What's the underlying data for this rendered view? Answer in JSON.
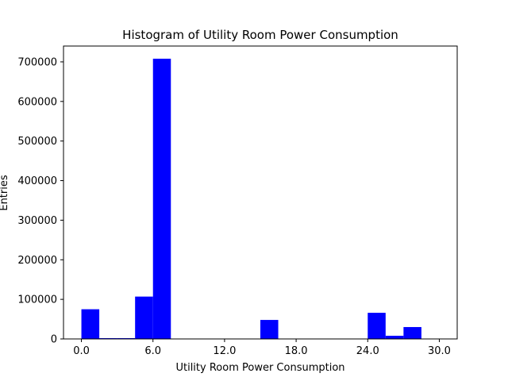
{
  "chart_data": {
    "type": "bar",
    "title": "Histogram of Utility Room Power Consumption",
    "xlabel": "Utility Room Power Consumption",
    "ylabel": "Entries",
    "xlim": [
      -1.5,
      31.5
    ],
    "ylim": [
      0,
      740000
    ],
    "grid": false,
    "bar_color": "#0000ff",
    "x_ticks": [
      0,
      6,
      12,
      18,
      24,
      30
    ],
    "x_tick_labels": [
      "0.0",
      "6.0",
      "12.0",
      "18.0",
      "24.0",
      "30.0"
    ],
    "y_ticks": [
      0,
      100000,
      200000,
      300000,
      400000,
      500000,
      600000,
      700000
    ],
    "y_tick_labels": [
      "0",
      "100000",
      "200000",
      "300000",
      "400000",
      "500000",
      "600000",
      "700000"
    ],
    "bin_width": 1.5,
    "bins": [
      {
        "x0": 0.0,
        "x1": 1.5,
        "value": 75000
      },
      {
        "x0": 1.5,
        "x1": 3.0,
        "value": 2000
      },
      {
        "x0": 3.0,
        "x1": 4.5,
        "value": 2000
      },
      {
        "x0": 4.5,
        "x1": 6.0,
        "value": 107000
      },
      {
        "x0": 6.0,
        "x1": 7.5,
        "value": 708000
      },
      {
        "x0": 7.5,
        "x1": 9.0,
        "value": 0
      },
      {
        "x0": 9.0,
        "x1": 10.5,
        "value": 0
      },
      {
        "x0": 10.5,
        "x1": 12.0,
        "value": 0
      },
      {
        "x0": 12.0,
        "x1": 13.5,
        "value": 0
      },
      {
        "x0": 13.5,
        "x1": 15.0,
        "value": 0
      },
      {
        "x0": 15.0,
        "x1": 16.5,
        "value": 48000
      },
      {
        "x0": 16.5,
        "x1": 18.0,
        "value": 0
      },
      {
        "x0": 18.0,
        "x1": 19.5,
        "value": 0
      },
      {
        "x0": 19.5,
        "x1": 21.0,
        "value": 0
      },
      {
        "x0": 21.0,
        "x1": 22.5,
        "value": 0
      },
      {
        "x0": 22.5,
        "x1": 24.0,
        "value": 0
      },
      {
        "x0": 24.0,
        "x1": 25.5,
        "value": 66000
      },
      {
        "x0": 25.5,
        "x1": 27.0,
        "value": 8000
      },
      {
        "x0": 27.0,
        "x1": 28.5,
        "value": 30000
      },
      {
        "x0": 28.5,
        "x1": 30.0,
        "value": 0
      }
    ]
  }
}
